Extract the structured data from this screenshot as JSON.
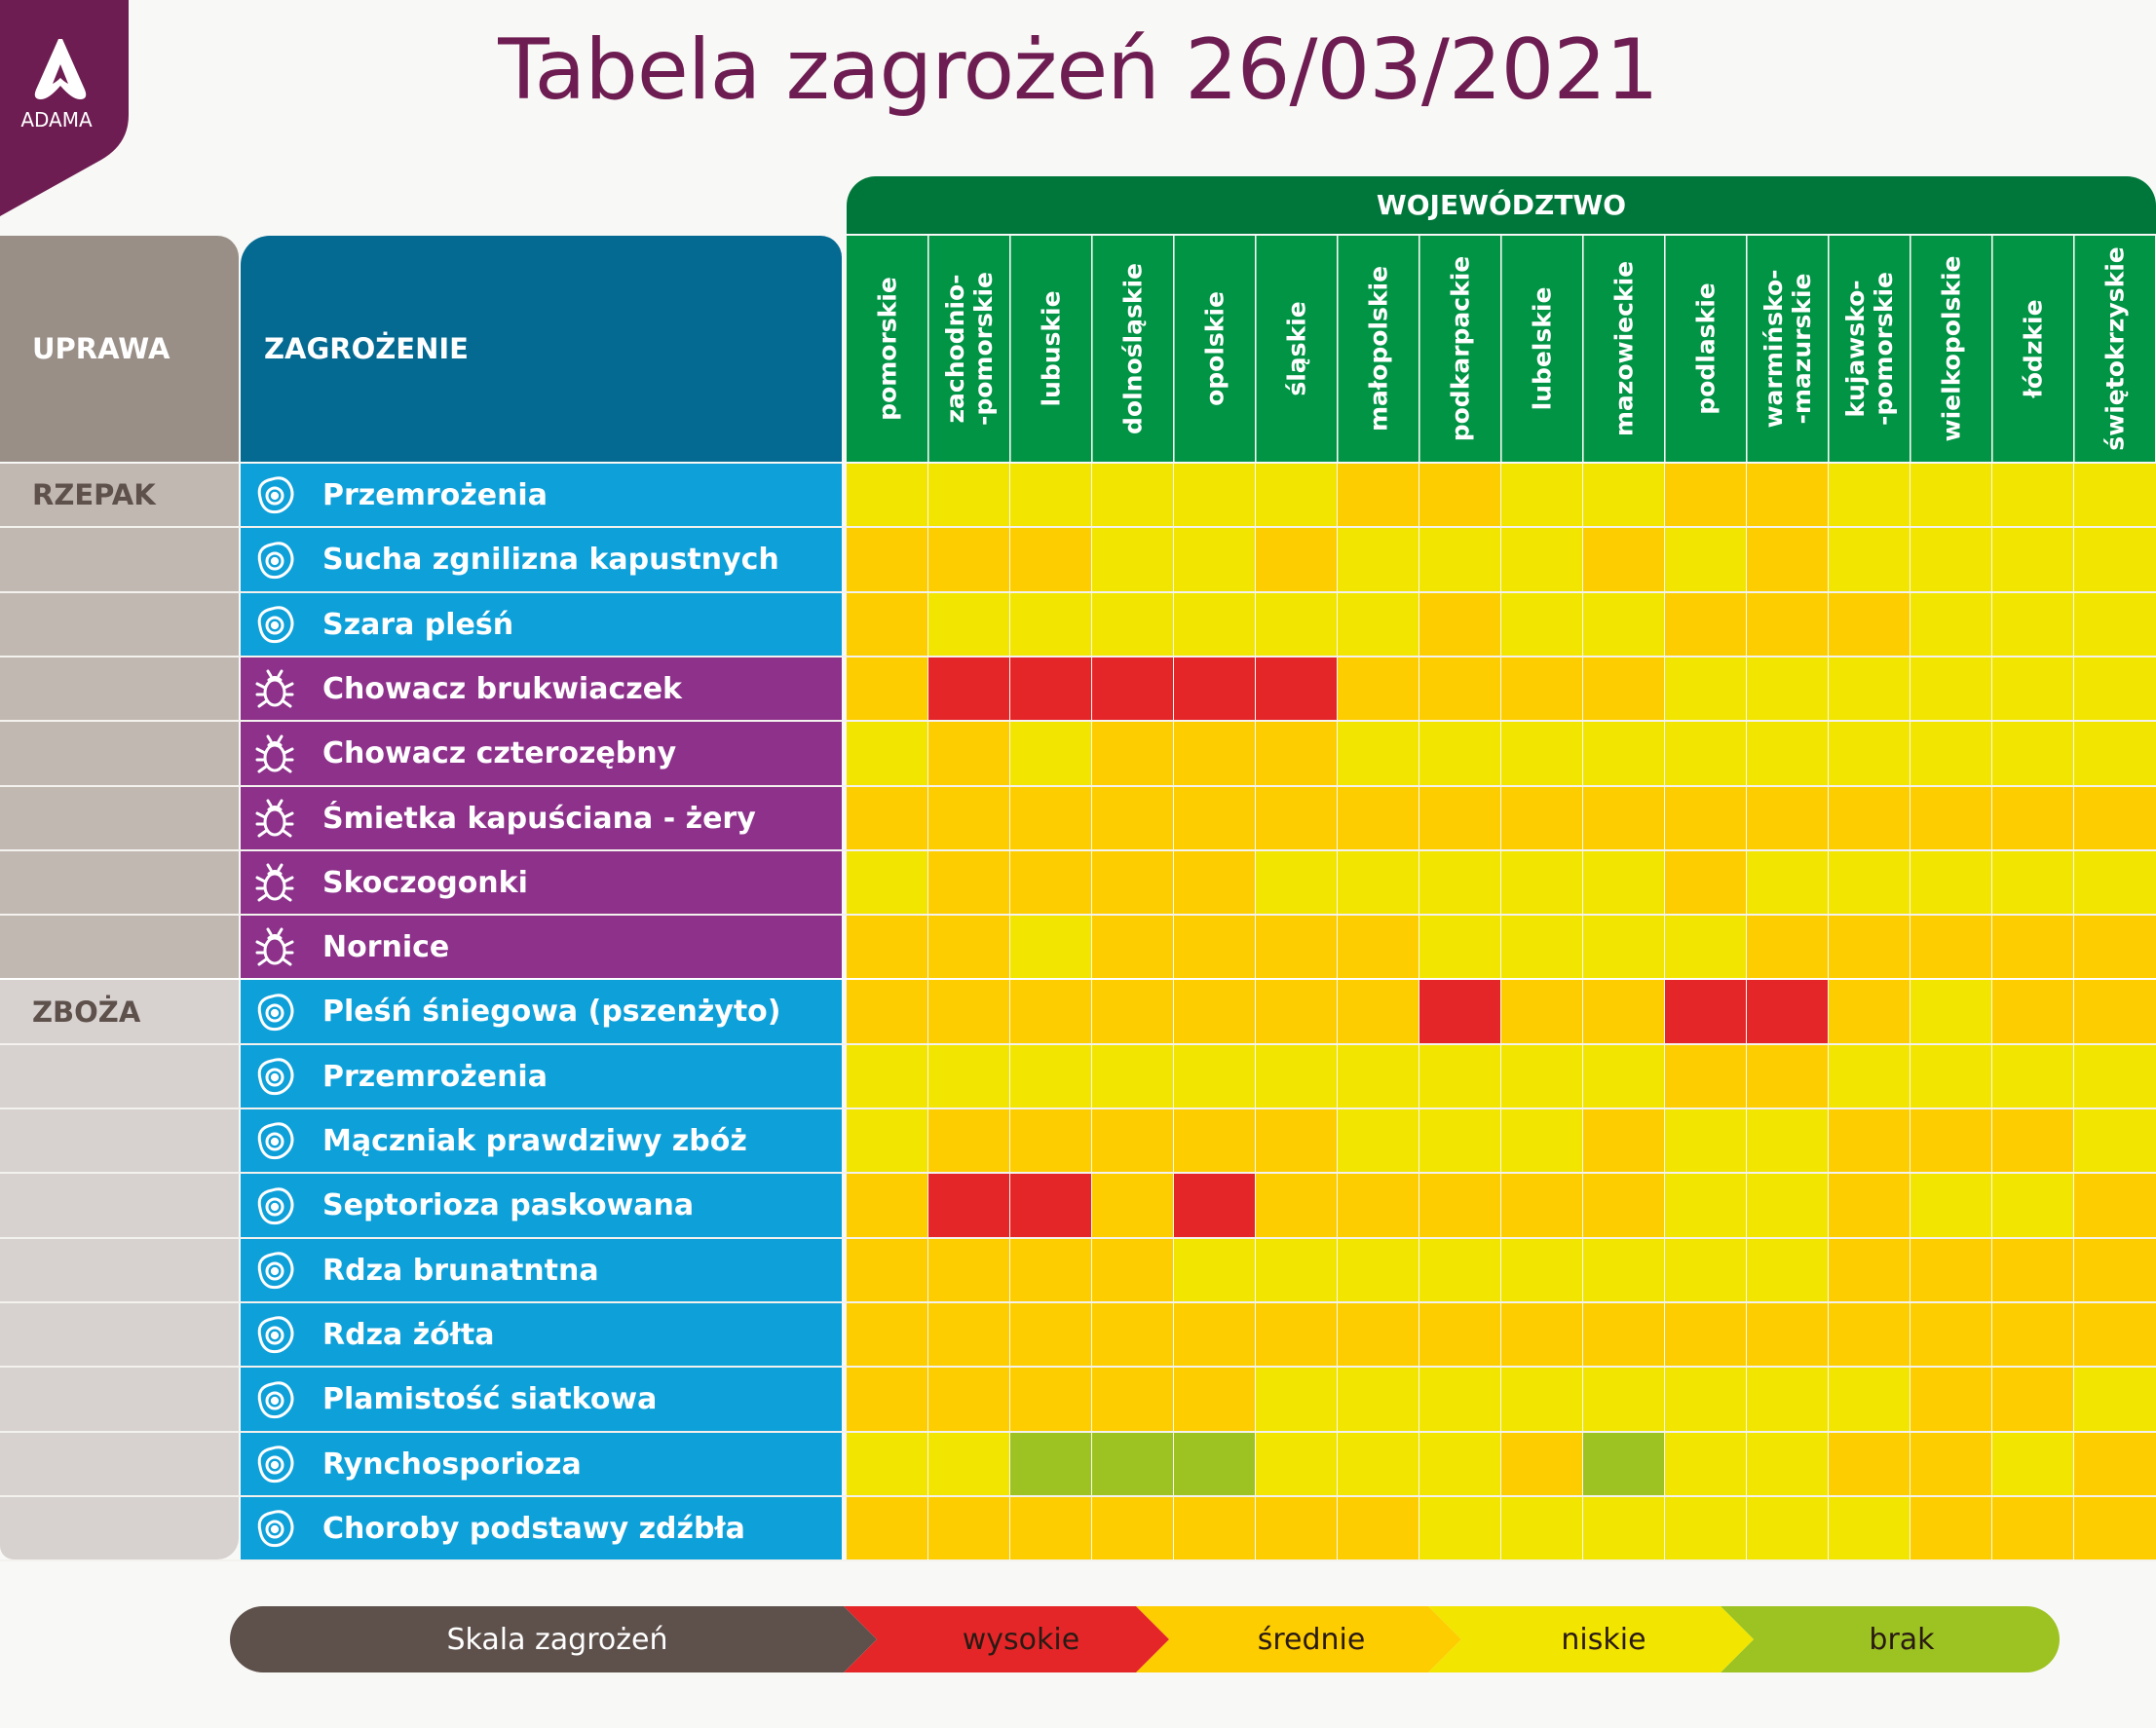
{
  "brand": {
    "logo_text": "ADAMA"
  },
  "title": "Tabela zagrożeń 26/03/2021",
  "headers": {
    "uprawa": "UPRAWA",
    "zagrozenie": "ZAGROŻENIE",
    "wojewodztwo": "WOJEWÓDZTWO"
  },
  "colors": {
    "high": "#e52629",
    "medium": "#fecd00",
    "low": "#f2e500",
    "none": "#9cc321",
    "disease": "#0ea0d9",
    "pest": "#8d318b",
    "brand": "#6e1d52",
    "region_header": "#009444"
  },
  "chart_data": {
    "type": "heatmap",
    "title": "Tabela zagrożeń 26/03/2021",
    "x_label": "WOJEWÓDZTWO",
    "columns": [
      "pomorskie",
      "zachodnio-\n-pomorskie",
      "lubuskie",
      "dolnośląskie",
      "opolskie",
      "śląskie",
      "małopolskie",
      "podkarpackie",
      "lubelskie",
      "mazowieckie",
      "podlaskie",
      "warmińsko-\n-mazurskie",
      "kujawsko-\n-pomorskie",
      "wielkopolskie",
      "łódzkie",
      "świętokrzyskie"
    ],
    "scale_title": "Skala zagrożeń",
    "levels": [
      "wysokie",
      "średnie",
      "niskie",
      "brak"
    ],
    "level_codes": {
      "H": "wysokie",
      "M": "średnie",
      "L": "niskie",
      "N": "brak"
    },
    "groups": [
      {
        "crop": "RZEPAK",
        "rows": [
          {
            "threat": "Przemrożenia",
            "kind": "disease",
            "values": [
              "L",
              "L",
              "L",
              "L",
              "L",
              "L",
              "M",
              "M",
              "L",
              "L",
              "M",
              "M",
              "L",
              "L",
              "L",
              "L"
            ]
          },
          {
            "threat": "Sucha zgnilizna kapustnych",
            "kind": "disease",
            "values": [
              "M",
              "M",
              "M",
              "L",
              "L",
              "M",
              "L",
              "L",
              "L",
              "M",
              "L",
              "M",
              "L",
              "L",
              "L",
              "L"
            ]
          },
          {
            "threat": "Szara pleśń",
            "kind": "disease",
            "values": [
              "M",
              "L",
              "L",
              "L",
              "L",
              "L",
              "L",
              "M",
              "L",
              "L",
              "M",
              "M",
              "M",
              "L",
              "L",
              "L"
            ]
          },
          {
            "threat": "Chowacz brukwiaczek",
            "kind": "pest",
            "values": [
              "M",
              "H",
              "H",
              "H",
              "H",
              "H",
              "M",
              "M",
              "M",
              "M",
              "L",
              "L",
              "L",
              "L",
              "L",
              "L"
            ]
          },
          {
            "threat": "Chowacz czterozębny",
            "kind": "pest",
            "values": [
              "L",
              "M",
              "L",
              "M",
              "M",
              "M",
              "L",
              "L",
              "L",
              "L",
              "L",
              "L",
              "L",
              "L",
              "L",
              "L"
            ]
          },
          {
            "threat": "Śmietka kapuściana - żery",
            "kind": "pest",
            "values": [
              "M",
              "M",
              "M",
              "M",
              "M",
              "M",
              "M",
              "M",
              "M",
              "M",
              "M",
              "M",
              "M",
              "M",
              "M",
              "M"
            ]
          },
          {
            "threat": "Skoczogonki",
            "kind": "pest",
            "values": [
              "L",
              "M",
              "M",
              "M",
              "M",
              "L",
              "L",
              "L",
              "L",
              "L",
              "M",
              "L",
              "L",
              "L",
              "L",
              "L"
            ]
          },
          {
            "threat": "Nornice",
            "kind": "pest",
            "values": [
              "M",
              "M",
              "L",
              "M",
              "M",
              "M",
              "M",
              "L",
              "L",
              "L",
              "L",
              "M",
              "M",
              "M",
              "M",
              "M"
            ]
          }
        ]
      },
      {
        "crop": "ZBOŻA",
        "rows": [
          {
            "threat": "Pleśń śniegowa (pszenżyto)",
            "kind": "disease",
            "values": [
              "M",
              "M",
              "M",
              "M",
              "M",
              "M",
              "M",
              "H",
              "M",
              "M",
              "H",
              "H",
              "M",
              "L",
              "M",
              "M"
            ]
          },
          {
            "threat": "Przemrożenia",
            "kind": "disease",
            "values": [
              "L",
              "L",
              "L",
              "L",
              "L",
              "L",
              "L",
              "L",
              "L",
              "L",
              "M",
              "M",
              "L",
              "L",
              "L",
              "L"
            ]
          },
          {
            "threat": "Mączniak prawdziwy zbóż",
            "kind": "disease",
            "values": [
              "L",
              "M",
              "M",
              "M",
              "M",
              "M",
              "L",
              "L",
              "L",
              "M",
              "L",
              "L",
              "M",
              "M",
              "M",
              "L"
            ]
          },
          {
            "threat": "Septorioza paskowana",
            "kind": "disease",
            "values": [
              "M",
              "H",
              "H",
              "M",
              "H",
              "M",
              "M",
              "M",
              "M",
              "M",
              "L",
              "L",
              "M",
              "L",
              "L",
              "M"
            ]
          },
          {
            "threat": "Rdza brunatntna",
            "kind": "disease",
            "values": [
              "M",
              "M",
              "M",
              "M",
              "L",
              "L",
              "L",
              "L",
              "L",
              "L",
              "L",
              "L",
              "M",
              "M",
              "M",
              "M"
            ]
          },
          {
            "threat": "Rdza żółta",
            "kind": "disease",
            "values": [
              "M",
              "M",
              "M",
              "M",
              "M",
              "M",
              "M",
              "M",
              "M",
              "M",
              "M",
              "M",
              "M",
              "M",
              "M",
              "M"
            ]
          },
          {
            "threat": "Plamistość siatkowa",
            "kind": "disease",
            "values": [
              "M",
              "M",
              "M",
              "M",
              "M",
              "L",
              "L",
              "L",
              "L",
              "L",
              "L",
              "L",
              "L",
              "M",
              "M",
              "L"
            ]
          },
          {
            "threat": "Rynchosporioza",
            "kind": "disease",
            "values": [
              "L",
              "L",
              "N",
              "N",
              "N",
              "L",
              "L",
              "L",
              "M",
              "N",
              "L",
              "L",
              "M",
              "M",
              "L",
              "M"
            ]
          },
          {
            "threat": "Choroby podstawy zdźbła",
            "kind": "disease",
            "values": [
              "M",
              "M",
              "M",
              "M",
              "M",
              "M",
              "M",
              "L",
              "L",
              "L",
              "L",
              "L",
              "L",
              "M",
              "M",
              "M"
            ]
          }
        ]
      }
    ]
  }
}
